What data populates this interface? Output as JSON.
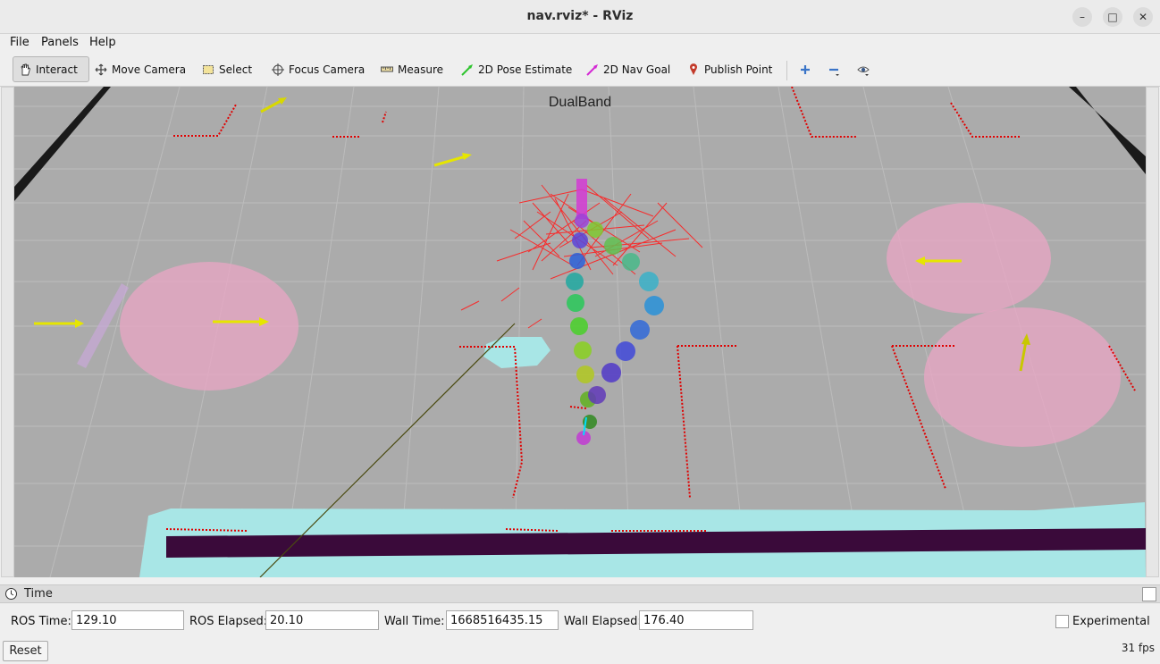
{
  "window": {
    "title": "nav.rviz* - RViz",
    "minimize_icon": "minimize-icon",
    "maximize_icon": "maximize-icon",
    "close_icon": "close-icon"
  },
  "menu": {
    "items": [
      {
        "label": "File"
      },
      {
        "label": "Panels"
      },
      {
        "label": "Help"
      }
    ]
  },
  "toolbar": {
    "tools": [
      {
        "label": "Interact",
        "icon": "hand-icon",
        "active": true
      },
      {
        "label": "Move Camera",
        "icon": "move-camera-icon"
      },
      {
        "label": "Select",
        "icon": "select-icon"
      },
      {
        "label": "Focus Camera",
        "icon": "focus-camera-icon"
      },
      {
        "label": "Measure",
        "icon": "ruler-icon"
      },
      {
        "label": "2D Pose Estimate",
        "icon": "green-arrow-icon"
      },
      {
        "label": "2D Nav Goal",
        "icon": "magenta-arrow-icon"
      },
      {
        "label": "Publish Point",
        "icon": "map-pin-icon"
      }
    ],
    "extra_icons": [
      "plus-icon",
      "minus-icon",
      "eye-icon"
    ]
  },
  "viewport": {
    "overlay_text": "DualBand"
  },
  "time_panel": {
    "title": "Time",
    "ros_time_label": "ROS Time:",
    "ros_time": "129.10",
    "ros_elapsed_label": "ROS Elapsed:",
    "ros_elapsed": "20.10",
    "wall_time_label": "Wall Time:",
    "wall_time": "1668516435.15",
    "wall_elapsed_label": "Wall Elapsed:",
    "wall_elapsed": "176.40",
    "experimental_label": "Experimental",
    "reset_label": "Reset",
    "fps": "31 fps"
  }
}
